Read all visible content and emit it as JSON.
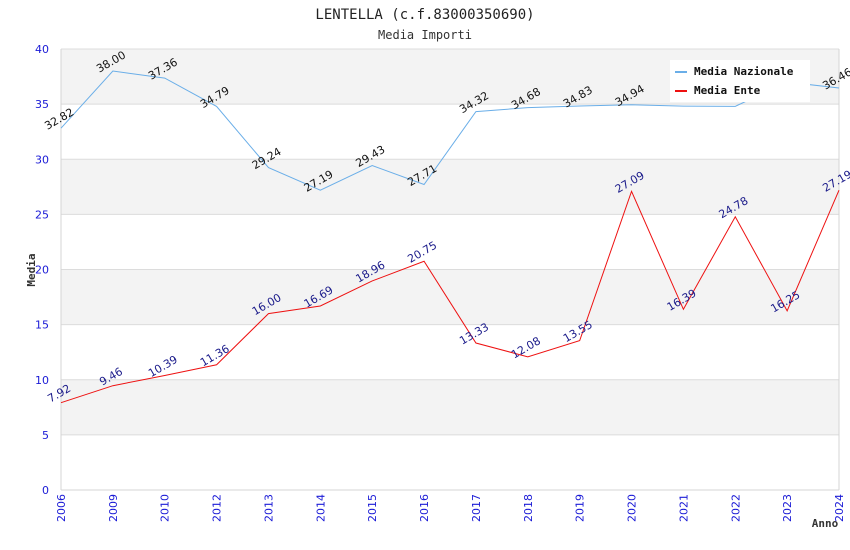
{
  "chart_data": {
    "type": "line",
    "title": "LENTELLA (c.f.83000350690)",
    "subtitle": "Media Importi",
    "xlabel": "Anno",
    "ylabel": "Media",
    "ylim": [
      0,
      40
    ],
    "yticks": [
      0,
      5,
      10,
      15,
      20,
      25,
      30,
      35,
      40
    ],
    "grid": true,
    "legend_position": "top-right",
    "categories": [
      "2006",
      "2009",
      "2010",
      "2012",
      "2013",
      "2014",
      "2015",
      "2016",
      "2017",
      "2018",
      "2019",
      "2020",
      "2021",
      "2022",
      "2023",
      "2024"
    ],
    "series": [
      {
        "name": "Media Nazionale",
        "color": "#6aaee8",
        "label_color": "#111111",
        "values": [
          32.82,
          38.0,
          37.36,
          34.79,
          29.24,
          27.19,
          29.43,
          27.71,
          34.32,
          34.68,
          34.83,
          34.94,
          34.82,
          34.8,
          37.0,
          36.46
        ],
        "labels": [
          "32.82",
          "38.00",
          "37.36",
          "34.79",
          "29.24",
          "27.19",
          "29.43",
          "27.71",
          "34.32",
          "34.68",
          "34.83",
          "34.94",
          "",
          "",
          "",
          "36.46"
        ]
      },
      {
        "name": "Media Ente",
        "color": "#ee1111",
        "label_color": "#1a1a8a",
        "values": [
          7.92,
          9.46,
          10.39,
          11.36,
          16.0,
          16.69,
          18.96,
          20.75,
          13.33,
          12.08,
          13.55,
          27.09,
          16.39,
          24.78,
          16.25,
          27.19
        ],
        "labels": [
          "7.92",
          "9.46",
          "10.39",
          "11.36",
          "16.00",
          "16.69",
          "18.96",
          "20.75",
          "13.33",
          "12.08",
          "13.55",
          "27.09",
          "16.39",
          "24.78",
          "16.25",
          "27.19"
        ]
      }
    ]
  }
}
